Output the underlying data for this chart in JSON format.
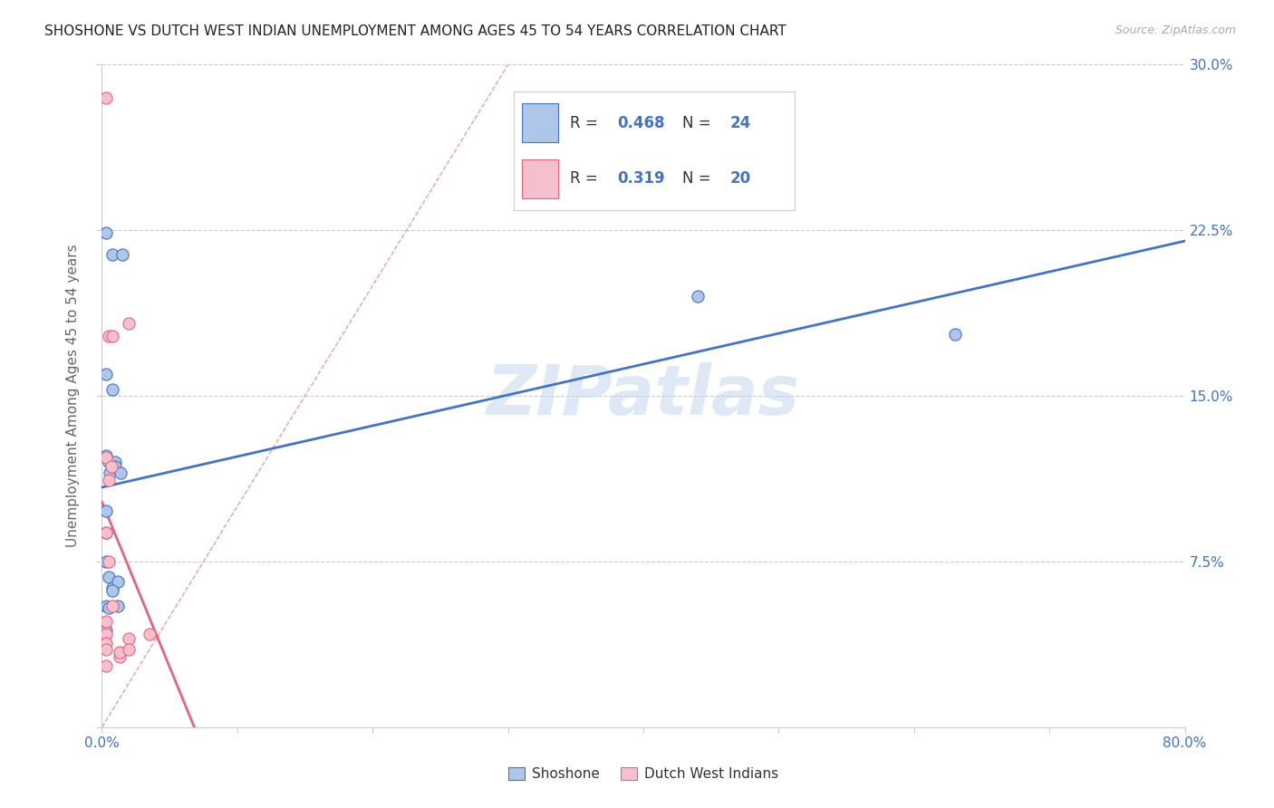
{
  "title": "SHOSHONE VS DUTCH WEST INDIAN UNEMPLOYMENT AMONG AGES 45 TO 54 YEARS CORRELATION CHART",
  "source": "Source: ZipAtlas.com",
  "ylabel": "Unemployment Among Ages 45 to 54 years",
  "xlim": [
    0.0,
    0.8
  ],
  "ylim": [
    0.0,
    0.3
  ],
  "xticks": [
    0.0,
    0.1,
    0.2,
    0.3,
    0.4,
    0.5,
    0.6,
    0.7,
    0.8
  ],
  "xticklabels": [
    "0.0%",
    "",
    "",
    "",
    "",
    "",
    "",
    "",
    "80.0%"
  ],
  "yticks": [
    0.0,
    0.075,
    0.15,
    0.225,
    0.3
  ],
  "yticklabels_right": [
    "",
    "7.5%",
    "15.0%",
    "22.5%",
    "30.0%"
  ],
  "shoshone_color": "#aec6e8",
  "dutch_color": "#f5c0ce",
  "shoshone_edge_color": "#4472c4",
  "dutch_edge_color": "#e8637e",
  "shoshone_line_color": "#4472c4",
  "dutch_line_color": "#e8637e",
  "diagonal_color": "#e8a0a8",
  "R_shoshone": "0.468",
  "N_shoshone": "24",
  "R_dutch": "0.319",
  "N_dutch": "20",
  "shoshone_x": [
    0.003,
    0.008,
    0.015,
    0.003,
    0.008,
    0.003,
    0.005,
    0.01,
    0.003,
    0.006,
    0.01,
    0.014,
    0.003,
    0.005,
    0.008,
    0.012,
    0.003,
    0.005,
    0.008,
    0.012,
    0.003,
    0.44,
    0.63,
    0.003
  ],
  "shoshone_y": [
    0.224,
    0.214,
    0.214,
    0.16,
    0.153,
    0.123,
    0.12,
    0.12,
    0.098,
    0.115,
    0.118,
    0.115,
    0.088,
    0.068,
    0.063,
    0.066,
    0.055,
    0.054,
    0.062,
    0.055,
    0.044,
    0.195,
    0.178,
    0.075
  ],
  "dutch_x": [
    0.003,
    0.005,
    0.008,
    0.003,
    0.005,
    0.007,
    0.003,
    0.005,
    0.008,
    0.013,
    0.013,
    0.003,
    0.003,
    0.003,
    0.003,
    0.003,
    0.02,
    0.02,
    0.02,
    0.035
  ],
  "dutch_y": [
    0.285,
    0.177,
    0.177,
    0.122,
    0.112,
    0.118,
    0.088,
    0.075,
    0.055,
    0.032,
    0.034,
    0.042,
    0.038,
    0.048,
    0.035,
    0.028,
    0.183,
    0.04,
    0.035,
    0.042
  ],
  "watermark": "ZIPatlas",
  "legend_labels": [
    "Shoshone",
    "Dutch West Indians"
  ],
  "value_color": "#4472c4",
  "label_color": "#333333",
  "figsize": [
    14.06,
    8.92
  ],
  "dpi": 100
}
